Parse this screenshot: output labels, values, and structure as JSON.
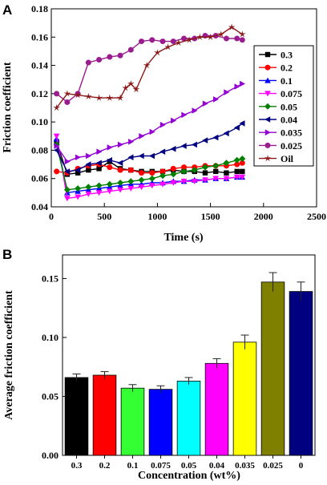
{
  "panels": {
    "a": "A",
    "b": "B"
  },
  "chart_data": [
    {
      "type": "line",
      "panel": "A",
      "xlabel": "Time (s)",
      "ylabel": "Friction coefficient",
      "xlim": [
        0,
        2500
      ],
      "ylim": [
        0.04,
        0.18
      ],
      "xticks": [
        0,
        500,
        1000,
        1500,
        2000,
        2500
      ],
      "yticks": [
        0.04,
        0.06,
        0.08,
        0.1,
        0.12,
        0.14,
        0.16,
        0.18
      ],
      "ytick_labels": [
        "0.04",
        "0.06",
        "0.08",
        "0.10",
        "0.12",
        "0.14",
        "0.16",
        "0.18"
      ],
      "grid": false,
      "legend_position": "right",
      "series": [
        {
          "name": "0.3",
          "color": "#000000",
          "marker": "square",
          "x": [
            50,
            150,
            250,
            350,
            450,
            550,
            650,
            750,
            850,
            950,
            1050,
            1150,
            1250,
            1350,
            1450,
            1550,
            1650,
            1750,
            1800
          ],
          "y": [
            0.086,
            0.063,
            0.064,
            0.066,
            0.067,
            0.072,
            0.067,
            0.066,
            0.065,
            0.065,
            0.065,
            0.066,
            0.065,
            0.065,
            0.064,
            0.065,
            0.064,
            0.065,
            0.065
          ]
        },
        {
          "name": "0.2",
          "color": "#ff0000",
          "marker": "circle",
          "x": [
            50,
            150,
            250,
            350,
            450,
            550,
            650,
            750,
            850,
            950,
            1050,
            1150,
            1250,
            1350,
            1450,
            1550,
            1650,
            1750,
            1800
          ],
          "y": [
            0.065,
            0.064,
            0.067,
            0.069,
            0.07,
            0.068,
            0.066,
            0.066,
            0.064,
            0.064,
            0.065,
            0.067,
            0.068,
            0.068,
            0.069,
            0.069,
            0.069,
            0.07,
            0.071
          ]
        },
        {
          "name": "0.1",
          "color": "#0000ff",
          "marker": "triangle-up",
          "x": [
            50,
            150,
            250,
            350,
            450,
            550,
            650,
            750,
            850,
            950,
            1050,
            1150,
            1250,
            1350,
            1450,
            1550,
            1650,
            1750,
            1800
          ],
          "y": [
            0.088,
            0.05,
            0.051,
            0.052,
            0.053,
            0.054,
            0.055,
            0.056,
            0.056,
            0.057,
            0.057,
            0.058,
            0.058,
            0.059,
            0.059,
            0.06,
            0.06,
            0.061,
            0.061
          ]
        },
        {
          "name": "0.075",
          "color": "#ff00ff",
          "marker": "triangle-down",
          "x": [
            50,
            150,
            250,
            350,
            450,
            550,
            650,
            750,
            850,
            950,
            1050,
            1150,
            1250,
            1350,
            1450,
            1550,
            1650,
            1750,
            1800
          ],
          "y": [
            0.09,
            0.046,
            0.047,
            0.049,
            0.05,
            0.051,
            0.052,
            0.053,
            0.054,
            0.055,
            0.056,
            0.057,
            0.058,
            0.058,
            0.059,
            0.06,
            0.06,
            0.061,
            0.061
          ]
        },
        {
          "name": "0.05",
          "color": "#008000",
          "marker": "diamond",
          "x": [
            50,
            150,
            250,
            350,
            450,
            550,
            650,
            750,
            850,
            950,
            1050,
            1150,
            1250,
            1350,
            1450,
            1550,
            1650,
            1750,
            1800
          ],
          "y": [
            0.084,
            0.052,
            0.053,
            0.054,
            0.055,
            0.056,
            0.057,
            0.058,
            0.059,
            0.06,
            0.062,
            0.063,
            0.065,
            0.066,
            0.068,
            0.069,
            0.071,
            0.073,
            0.074
          ]
        },
        {
          "name": "0.04",
          "color": "#000080",
          "marker": "triangle-left",
          "x": [
            50,
            150,
            250,
            350,
            450,
            550,
            650,
            750,
            850,
            950,
            1050,
            1150,
            1250,
            1350,
            1450,
            1550,
            1650,
            1750,
            1800
          ],
          "y": [
            0.08,
            0.065,
            0.066,
            0.07,
            0.071,
            0.073,
            0.071,
            0.075,
            0.076,
            0.076,
            0.079,
            0.081,
            0.083,
            0.084,
            0.087,
            0.089,
            0.092,
            0.096,
            0.099
          ]
        },
        {
          "name": "0.035",
          "color": "#9400d3",
          "marker": "triangle-right",
          "x": [
            50,
            150,
            250,
            350,
            450,
            550,
            650,
            750,
            850,
            950,
            1050,
            1150,
            1250,
            1350,
            1450,
            1550,
            1650,
            1750,
            1800
          ],
          "y": [
            0.083,
            0.072,
            0.075,
            0.076,
            0.079,
            0.082,
            0.084,
            0.086,
            0.09,
            0.093,
            0.098,
            0.101,
            0.105,
            0.108,
            0.113,
            0.116,
            0.121,
            0.125,
            0.127
          ]
        },
        {
          "name": "0.025",
          "color": "#9b1c8e",
          "marker": "circle",
          "x": [
            50,
            150,
            250,
            350,
            450,
            550,
            650,
            750,
            850,
            950,
            1050,
            1150,
            1250,
            1350,
            1450,
            1550,
            1650,
            1750,
            1800
          ],
          "y": [
            0.12,
            0.114,
            0.12,
            0.142,
            0.144,
            0.146,
            0.147,
            0.151,
            0.157,
            0.158,
            0.157,
            0.157,
            0.159,
            0.159,
            0.161,
            0.161,
            0.159,
            0.159,
            0.158
          ]
        },
        {
          "name": "Oil",
          "color": "#8b1a1a",
          "marker": "star",
          "x": [
            50,
            150,
            250,
            350,
            450,
            550,
            650,
            700,
            750,
            800,
            900,
            1000,
            1100,
            1200,
            1300,
            1400,
            1500,
            1600,
            1700,
            1800
          ],
          "y": [
            0.11,
            0.12,
            0.119,
            0.118,
            0.117,
            0.117,
            0.117,
            0.124,
            0.127,
            0.123,
            0.14,
            0.149,
            0.153,
            0.156,
            0.158,
            0.16,
            0.16,
            0.162,
            0.167,
            0.162
          ]
        }
      ]
    },
    {
      "type": "bar",
      "panel": "B",
      "xlabel": "Concentration (wt%)",
      "ylabel": "Average friction coefficient",
      "ylim": [
        0,
        0.17
      ],
      "yticks": [
        0.0,
        0.05,
        0.1,
        0.15
      ],
      "ytick_labels": [
        "0.00",
        "0.05",
        "0.10",
        "0.15"
      ],
      "grid": false,
      "categories": [
        "0.3",
        "0.2",
        "0.1",
        "0.075",
        "0.05",
        "0.04",
        "0.035",
        "0.025",
        "0"
      ],
      "values": [
        0.066,
        0.068,
        0.057,
        0.056,
        0.063,
        0.078,
        0.096,
        0.147,
        0.139
      ],
      "errors": [
        0.003,
        0.003,
        0.003,
        0.003,
        0.003,
        0.004,
        0.006,
        0.008,
        0.008
      ],
      "colors": [
        "#000000",
        "#ff0000",
        "#33ff33",
        "#0000ff",
        "#00ffff",
        "#ff00ff",
        "#ffff00",
        "#808000",
        "#000080"
      ]
    }
  ]
}
